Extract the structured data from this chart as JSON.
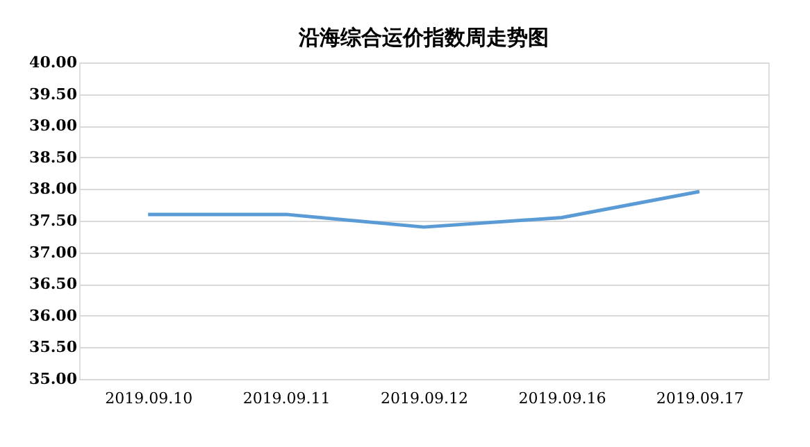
{
  "chart_data": {
    "type": "line",
    "title": "沿海综合运价指数周走势图",
    "categories": [
      "2019.09.10",
      "2019.09.11",
      "2019.09.12",
      "2019.09.16",
      "2019.09.17"
    ],
    "series": [
      {
        "color": "#5b9bd5",
        "values": [
          37.6,
          37.6,
          37.4,
          37.55,
          37.96
        ]
      }
    ],
    "ylim": [
      35,
      40
    ],
    "yticks": [
      {
        "value": 35,
        "label": "35.00"
      },
      {
        "value": 35.5,
        "label": "35.50"
      },
      {
        "value": 36,
        "label": "36.00"
      },
      {
        "value": 36.5,
        "label": "36.50"
      },
      {
        "value": 37,
        "label": "37.00"
      },
      {
        "value": 37.5,
        "label": "37.50"
      },
      {
        "value": 38,
        "label": "38.00"
      },
      {
        "value": 38.5,
        "label": "38.50"
      },
      {
        "value": 39,
        "label": "39.00"
      },
      {
        "value": 39.5,
        "label": "39.50"
      },
      {
        "value": 40,
        "label": "40.00"
      }
    ],
    "grid": "y",
    "marker": "none",
    "line_style": "solid"
  }
}
